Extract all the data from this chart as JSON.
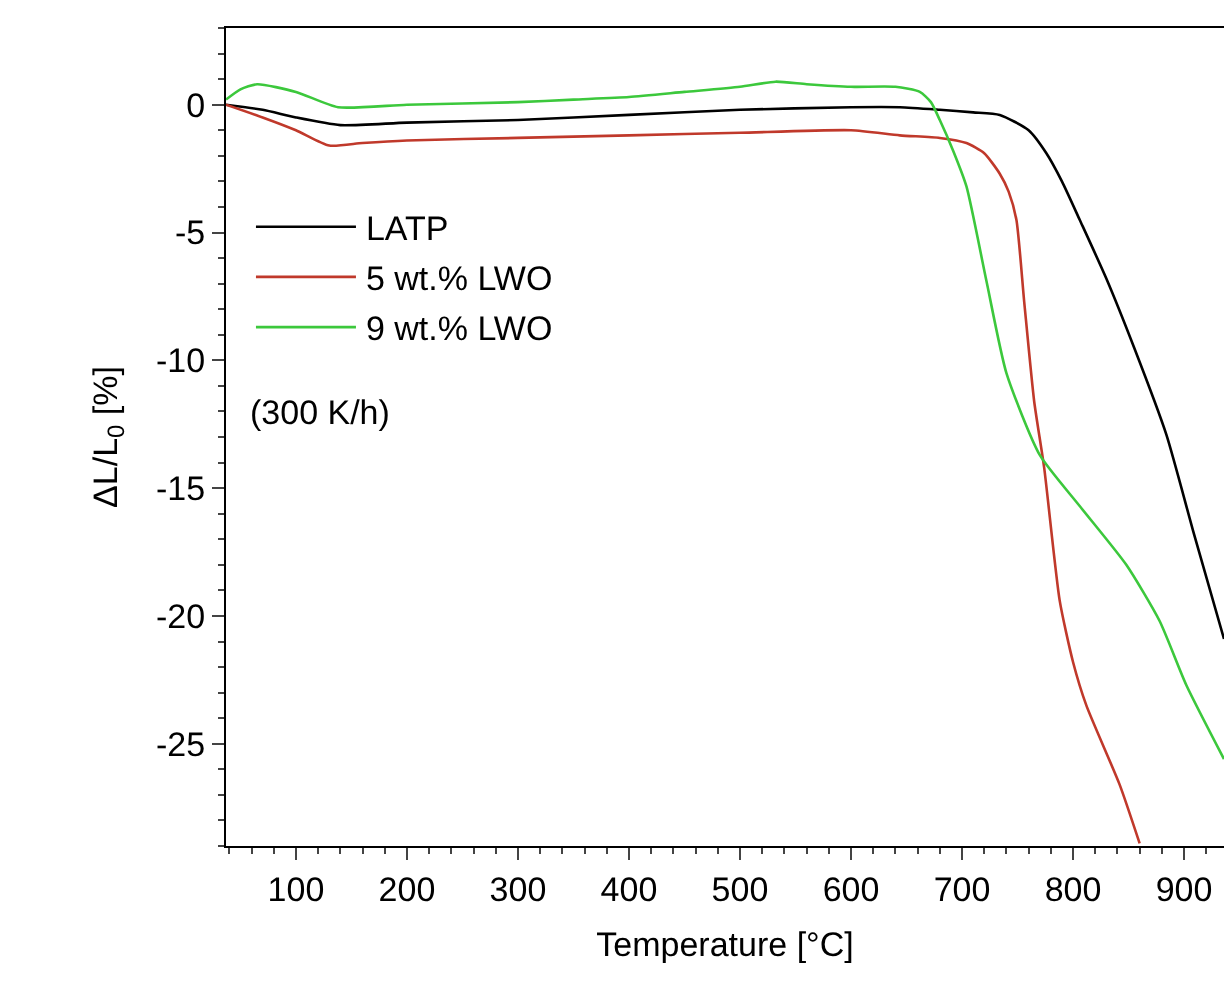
{
  "chart_data": {
    "type": "line",
    "xlabel": "Temperature [°C]",
    "ylabel": "ΔL/L$_{0}$ [%]",
    "xlim": [
      37,
      936
    ],
    "ylim": [
      -29,
      3
    ],
    "xticks": [
      100,
      200,
      300,
      400,
      500,
      600,
      700,
      800,
      900
    ],
    "yticks": [
      0,
      -5,
      -10,
      -15,
      -20,
      -25
    ],
    "grid": false,
    "legend": "top left",
    "marker": "none",
    "line_style": "solid",
    "annotations": [
      "(300 K/h)"
    ],
    "series": [
      {
        "name": "LATP",
        "color": "#000000",
        "x": [
          37,
          70,
          100,
          140,
          200,
          300,
          400,
          500,
          600,
          644,
          680,
          710,
          734,
          760,
          776,
          790,
          806,
          830,
          855,
          884,
          909,
          936
        ],
        "values": [
          0,
          -0.2,
          -0.5,
          -0.8,
          -0.7,
          -0.6,
          -0.4,
          -0.2,
          -0.1,
          -0.1,
          -0.2,
          -0.3,
          -0.4,
          -1.0,
          -1.9,
          -3.0,
          -4.5,
          -6.8,
          -9.5,
          -12.9,
          -16.8,
          -20.9
        ]
      },
      {
        "name": "5 wt.% LWO",
        "color": "#c0392b",
        "x": [
          37,
          70,
          100,
          130,
          160,
          200,
          300,
          400,
          500,
          600,
          644,
          680,
          704,
          720,
          734,
          742,
          749,
          756,
          765,
          774,
          788,
          800,
          812,
          842,
          860
        ],
        "values": [
          0,
          -0.5,
          -1.0,
          -1.6,
          -1.5,
          -1.4,
          -1.3,
          -1.2,
          -1.1,
          -1.0,
          -1.2,
          -1.3,
          -1.5,
          -1.9,
          -2.7,
          -3.4,
          -4.5,
          -7.7,
          -11.6,
          -14.2,
          -19.4,
          -21.8,
          -23.5,
          -26.6,
          -28.9
        ]
      },
      {
        "name": "9 wt.% LWO",
        "color": "#3cc83c",
        "x": [
          37,
          50,
          65,
          100,
          138,
          200,
          300,
          350,
          400,
          450,
          500,
          532,
          560,
          600,
          640,
          662,
          672,
          680,
          692,
          704,
          722,
          740,
          770,
          806,
          848,
          878,
          902,
          936
        ],
        "values": [
          0.2,
          0.6,
          0.8,
          0.5,
          -0.1,
          0,
          0.1,
          0.2,
          0.3,
          0.5,
          0.7,
          0.9,
          0.8,
          0.7,
          0.7,
          0.5,
          0.1,
          -0.6,
          -1.8,
          -3.2,
          -6.9,
          -10.5,
          -13.7,
          -15.7,
          -18.0,
          -20.2,
          -22.7,
          -25.6
        ]
      }
    ]
  }
}
